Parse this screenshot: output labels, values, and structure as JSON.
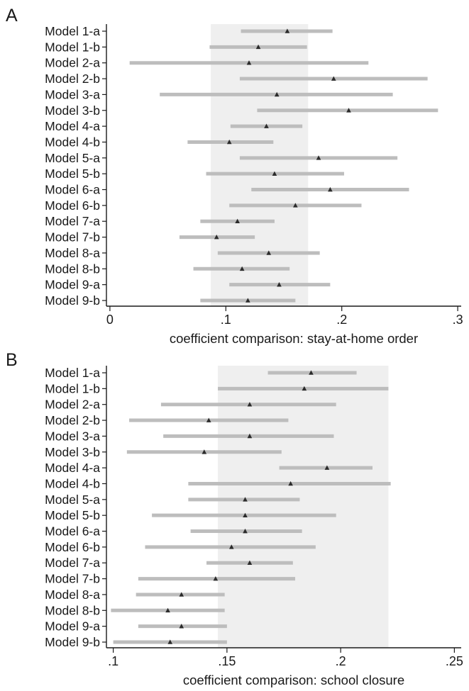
{
  "chart_data": [
    {
      "type": "range-dot",
      "panel_label": "A",
      "xlabel": "coefficient comparison: stay-at-home order",
      "xlim": [
        -0.003,
        0.303
      ],
      "xticks": [
        0,
        0.1,
        0.2,
        0.3
      ],
      "xtick_labels": [
        "0",
        ".1",
        ".2",
        ".3"
      ],
      "shaded_band": [
        0.087,
        0.171
      ],
      "categories": [
        "Model 1-a",
        "Model 1-b",
        "Model 2-a",
        "Model 2-b",
        "Model 3-a",
        "Model 3-b",
        "Model 4-a",
        "Model 4-b",
        "Model 5-a",
        "Model 5-b",
        "Model 6-a",
        "Model 6-b",
        "Model 7-a",
        "Model 7-b",
        "Model 8-a",
        "Model 8-b",
        "Model 9-a",
        "Model 9-b"
      ],
      "estimate": [
        0.153,
        0.128,
        0.12,
        0.193,
        0.144,
        0.206,
        0.135,
        0.103,
        0.18,
        0.142,
        0.19,
        0.16,
        0.11,
        0.092,
        0.137,
        0.114,
        0.146,
        0.119
      ],
      "low": [
        0.113,
        0.086,
        0.017,
        0.112,
        0.043,
        0.127,
        0.104,
        0.067,
        0.112,
        0.083,
        0.122,
        0.103,
        0.078,
        0.06,
        0.093,
        0.072,
        0.103,
        0.078
      ],
      "high": [
        0.192,
        0.17,
        0.223,
        0.274,
        0.244,
        0.283,
        0.166,
        0.141,
        0.248,
        0.202,
        0.258,
        0.217,
        0.142,
        0.125,
        0.181,
        0.155,
        0.19,
        0.16
      ],
      "colors": {
        "interval": "#bdbdbd",
        "marker": "#2b2b2b",
        "band": "#efefef"
      },
      "grid": false
    },
    {
      "type": "range-dot",
      "panel_label": "B",
      "xlabel": "coefficient comparison: school closure",
      "xlim": [
        0.097,
        0.253
      ],
      "xticks": [
        0.1,
        0.15,
        0.2,
        0.25
      ],
      "xtick_labels": [
        ".1",
        ".15",
        ".2",
        ".25"
      ],
      "shaded_band": [
        0.146,
        0.221
      ],
      "categories": [
        "Model 1-a",
        "Model 1-b",
        "Model 2-a",
        "Model 2-b",
        "Model 3-a",
        "Model 3-b",
        "Model 4-a",
        "Model 4-b",
        "Model 5-a",
        "Model 5-b",
        "Model 6-a",
        "Model 6-b",
        "Model 7-a",
        "Model 7-b",
        "Model 8-a",
        "Model 8-b",
        "Model 9-a",
        "Model 9-b"
      ],
      "estimate": [
        0.187,
        0.184,
        0.16,
        0.142,
        0.16,
        0.14,
        0.194,
        0.178,
        0.158,
        0.158,
        0.158,
        0.152,
        0.16,
        0.145,
        0.13,
        0.124,
        0.13,
        0.125
      ],
      "low": [
        0.168,
        0.146,
        0.121,
        0.107,
        0.122,
        0.106,
        0.173,
        0.133,
        0.133,
        0.117,
        0.134,
        0.114,
        0.141,
        0.111,
        0.11,
        0.099,
        0.111,
        0.1
      ],
      "high": [
        0.207,
        0.221,
        0.198,
        0.177,
        0.197,
        0.174,
        0.214,
        0.222,
        0.182,
        0.198,
        0.183,
        0.189,
        0.179,
        0.18,
        0.149,
        0.149,
        0.15,
        0.15
      ],
      "colors": {
        "interval": "#bdbdbd",
        "marker": "#2b2b2b",
        "band": "#efefef"
      },
      "grid": false
    }
  ]
}
